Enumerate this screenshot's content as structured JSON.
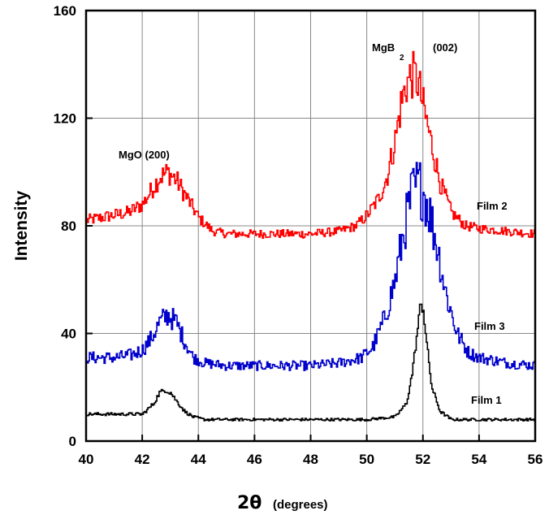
{
  "chart_data": {
    "type": "line",
    "xlabel_symbol": "2θ",
    "xlabel_units": "(degrees)",
    "ylabel": "Intensity",
    "xlim": [
      40,
      56
    ],
    "ylim": [
      0,
      160
    ],
    "x_ticks": [
      "40",
      "42",
      "44",
      "46",
      "48",
      "50",
      "52",
      "54",
      "56"
    ],
    "y_ticks": [
      "0",
      "40",
      "80",
      "120",
      "160"
    ],
    "grid": true,
    "annotations": {
      "mgo": "MgO (200)",
      "mgb_main": "MgB",
      "mgb_sub": "2",
      "mgb_hkl": "(002)"
    },
    "series": [
      {
        "name": "Film 2",
        "color": "#ff0000",
        "baseline": 78,
        "noise": 1.6,
        "x": [
          40,
          40.5,
          41,
          41.5,
          42,
          42.3,
          42.6,
          42.9,
          43.2,
          43.6,
          44,
          44.5,
          45,
          46,
          47,
          48,
          49,
          49.6,
          50,
          50.4,
          50.7,
          51,
          51.2,
          51.4,
          51.6,
          51.8,
          52.0,
          52.3,
          52.6,
          53,
          53.5,
          54,
          55,
          56
        ],
        "y": [
          82,
          83,
          84,
          85,
          88,
          93,
          98,
          100,
          97,
          90,
          83,
          78,
          77,
          77,
          77,
          77,
          78,
          80,
          84,
          90,
          98,
          112,
          125,
          133,
          136,
          134,
          124,
          110,
          96,
          85,
          80,
          79,
          78,
          77
        ]
      },
      {
        "name": "Film 3",
        "color": "#0000cc",
        "baseline": 28,
        "noise": 1.8,
        "x": [
          40,
          41,
          41.6,
          42,
          42.3,
          42.6,
          42.9,
          43.2,
          43.5,
          43.8,
          44.2,
          45,
          46,
          47,
          48,
          49,
          49.8,
          50.2,
          50.6,
          51,
          51.3,
          51.6,
          51.8,
          52.0,
          52.2,
          52.5,
          52.8,
          53.2,
          53.6,
          54,
          55,
          56
        ],
        "y": [
          31,
          31,
          32,
          34,
          38,
          44,
          47,
          44,
          37,
          31,
          29,
          28,
          28,
          28,
          28,
          29,
          31,
          35,
          45,
          60,
          78,
          92,
          95,
          93,
          86,
          72,
          55,
          40,
          33,
          31,
          29,
          28
        ]
      },
      {
        "name": "Film 1",
        "color": "#000000",
        "baseline": 8,
        "noise": 0.5,
        "x": [
          40,
          41,
          42,
          42.4,
          42.6,
          42.8,
          43.0,
          43.2,
          43.5,
          43.8,
          44.2,
          45,
          46,
          47,
          48,
          49,
          50,
          51,
          51.4,
          51.6,
          51.8,
          51.9,
          52.0,
          52.1,
          52.3,
          52.6,
          53,
          54,
          55,
          56
        ],
        "y": [
          10,
          10,
          10,
          14,
          18,
          19,
          18,
          15,
          11,
          9,
          8,
          8,
          8,
          8,
          8,
          8,
          8,
          9,
          14,
          25,
          42,
          51,
          49,
          38,
          20,
          11,
          8,
          8,
          8,
          8
        ]
      }
    ]
  }
}
